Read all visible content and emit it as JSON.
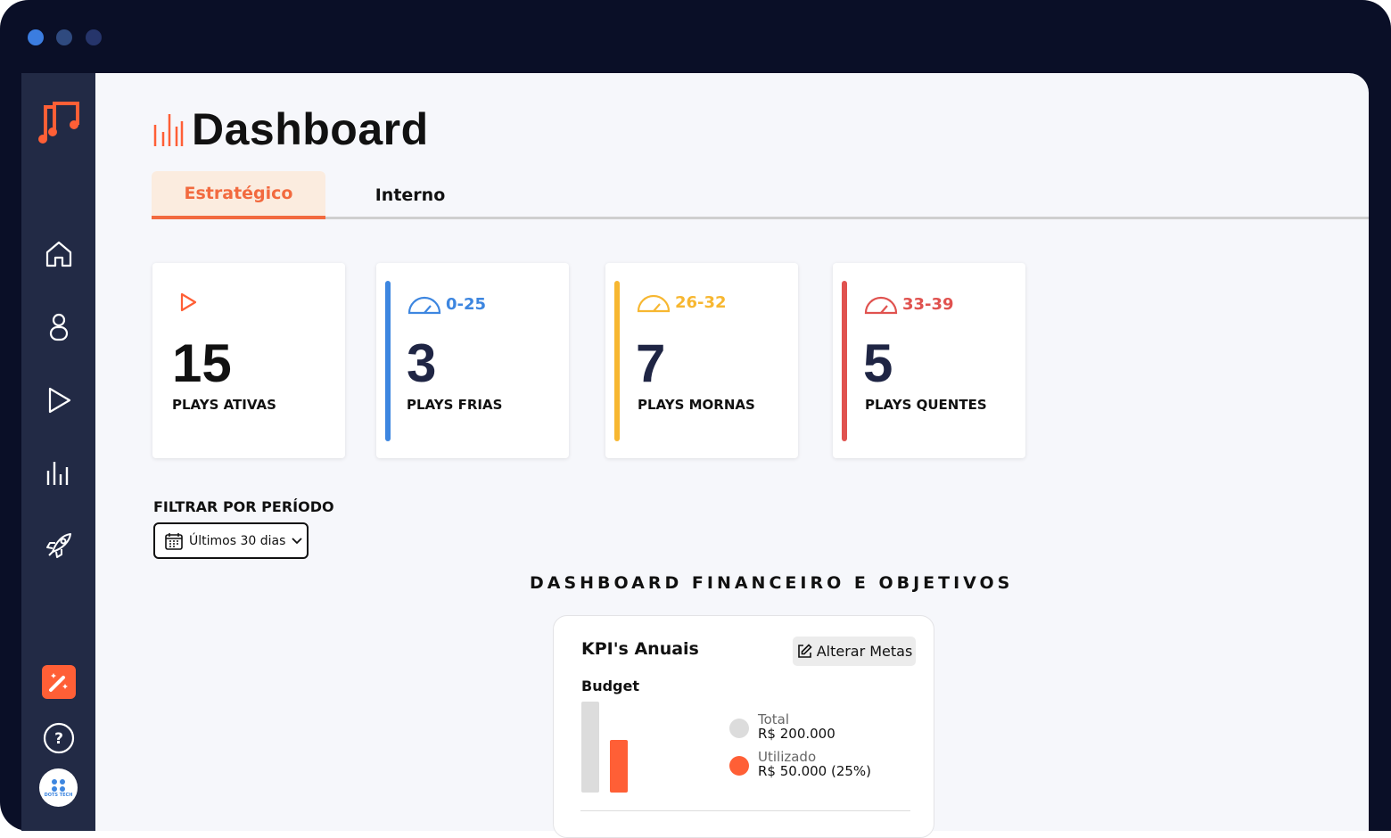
{
  "window": {
    "dots": [
      "#3b7de0",
      "#2f4a7f",
      "#26356b"
    ]
  },
  "colors": {
    "accent": "#f26a3f",
    "cold": "#3d86e0",
    "warm": "#f7b731",
    "hot": "#e0524f",
    "sidebar": "#222a45"
  },
  "sidebar": {
    "items": [
      {
        "icon": "home-icon"
      },
      {
        "icon": "user-icon"
      },
      {
        "icon": "play-icon"
      },
      {
        "icon": "chart-icon"
      },
      {
        "icon": "rocket-icon"
      },
      {
        "icon": "magic-wand-icon"
      },
      {
        "icon": "help-icon"
      }
    ],
    "org_logo_text": "DOTS TECH"
  },
  "header": {
    "title": "Dashboard"
  },
  "tabs": [
    {
      "label": "Estratégico",
      "active": true
    },
    {
      "label": "Interno",
      "active": false
    }
  ],
  "cards": [
    {
      "range": "",
      "value": "15",
      "label": "PLAYS ATIVAS",
      "icon": "play-icon"
    },
    {
      "range": "0-25",
      "value": "3",
      "label": "PLAYS FRIAS",
      "icon": "gauge-icon"
    },
    {
      "range": "26-32",
      "value": "7",
      "label": "PLAYS MORNAS",
      "icon": "gauge-icon"
    },
    {
      "range": "33-39",
      "value": "5",
      "label": "PLAYS QUENTES",
      "icon": "gauge-icon"
    }
  ],
  "filter": {
    "label": "FILTRAR POR PERÍODO",
    "value": "Últimos 30 dias"
  },
  "section_title": "DASHBOARD FINANCEIRO E OBJETIVOS",
  "kpi": {
    "title": "KPI's Anuais",
    "edit_label": "Alterar Metas",
    "budget_label": "Budget",
    "legend": [
      {
        "key": "Total",
        "value": "R$ 200.000",
        "color": "#dcdcdc"
      },
      {
        "key": "Utilizado",
        "value": "R$ 50.000 (25%)",
        "color": "#ff5f36"
      }
    ]
  }
}
